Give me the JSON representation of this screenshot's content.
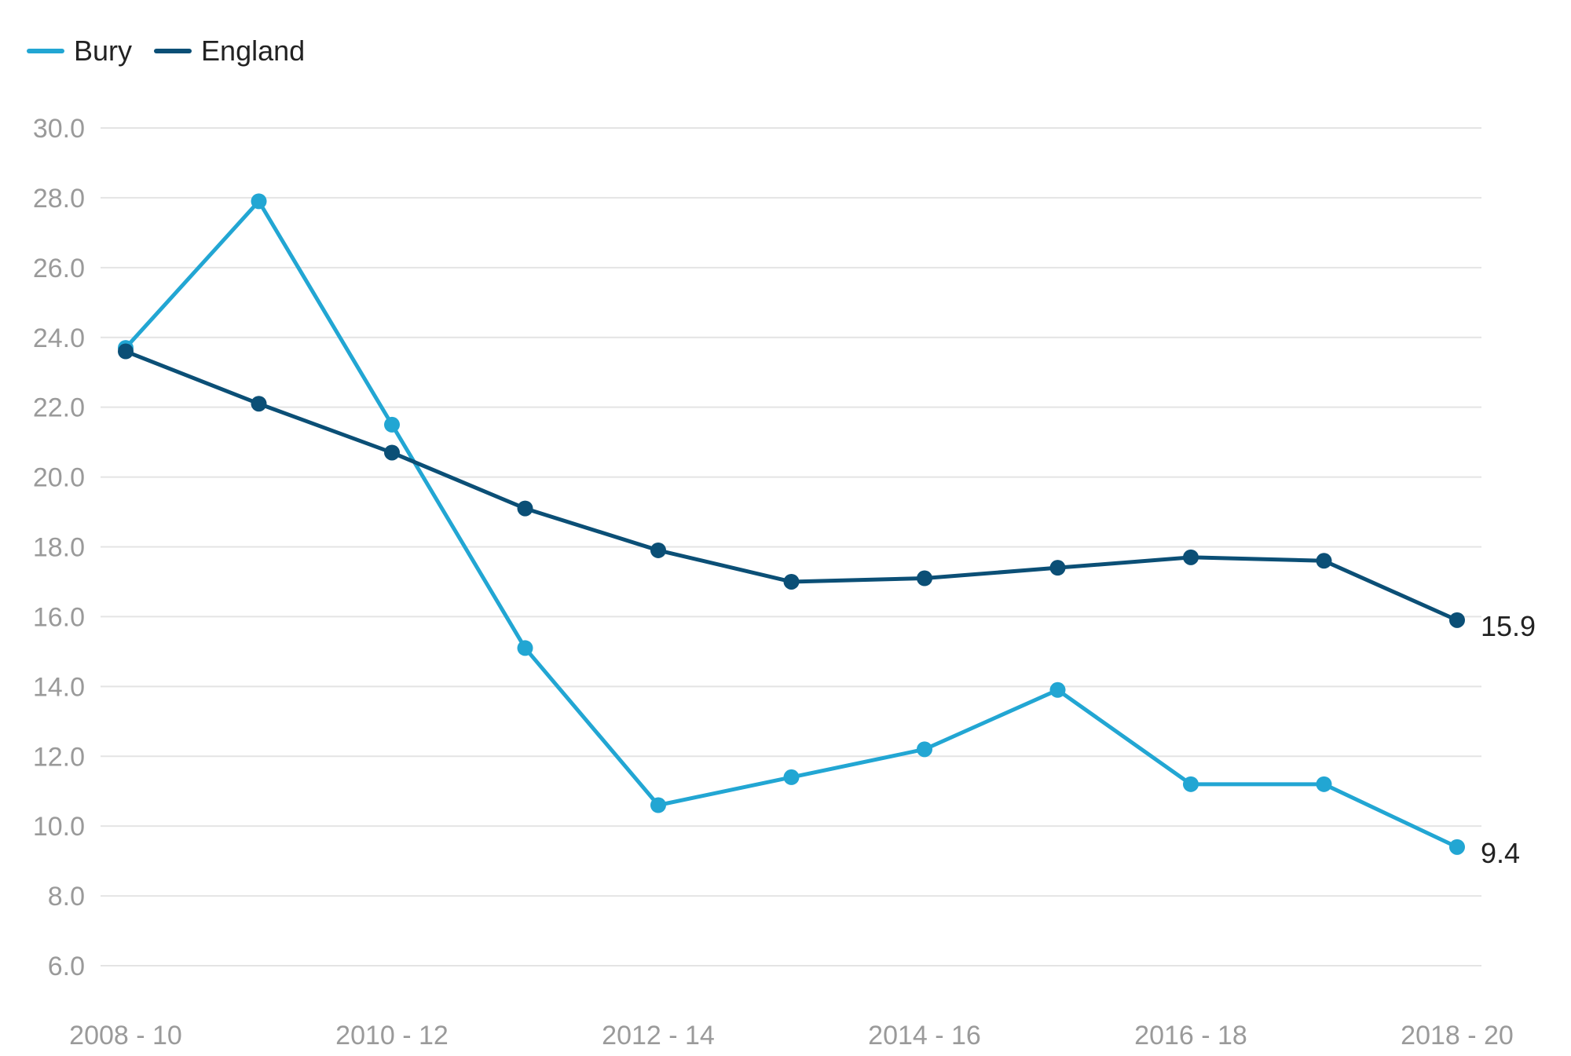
{
  "legend": {
    "bury": "Bury",
    "england": "England"
  },
  "colors": {
    "bury": "#22a6d3",
    "england": "#0b4f76",
    "grid": "#e4e4e4",
    "tick": "#9a9a9a"
  },
  "chart_data": {
    "type": "line",
    "x": [
      "2008 - 10",
      "2009 - 11",
      "2010 - 12",
      "2011 - 13",
      "2012 - 14",
      "2013 - 15",
      "2014 - 16",
      "2015 - 17",
      "2016 - 18",
      "2017 - 19",
      "2018 - 20"
    ],
    "x_tick_labels": [
      "2008 - 10",
      "2010 - 12",
      "2012 - 14",
      "2014 - 16",
      "2016 - 18",
      "2018 - 20"
    ],
    "y_ticks": [
      "6.0",
      "8.0",
      "10.0",
      "12.0",
      "14.0",
      "16.0",
      "18.0",
      "20.0",
      "22.0",
      "24.0",
      "26.0",
      "28.0",
      "30.0"
    ],
    "ylim": [
      6,
      30
    ],
    "grid": true,
    "legend_position": "top-left",
    "series": [
      {
        "name": "Bury",
        "values": [
          23.7,
          27.9,
          21.5,
          15.1,
          10.6,
          11.4,
          12.2,
          13.9,
          11.2,
          11.2,
          9.4
        ],
        "end_label": "9.4"
      },
      {
        "name": "England",
        "values": [
          23.6,
          22.1,
          20.7,
          19.1,
          17.9,
          17.0,
          17.1,
          17.4,
          17.7,
          17.6,
          15.9
        ],
        "end_label": "15.9"
      }
    ]
  }
}
